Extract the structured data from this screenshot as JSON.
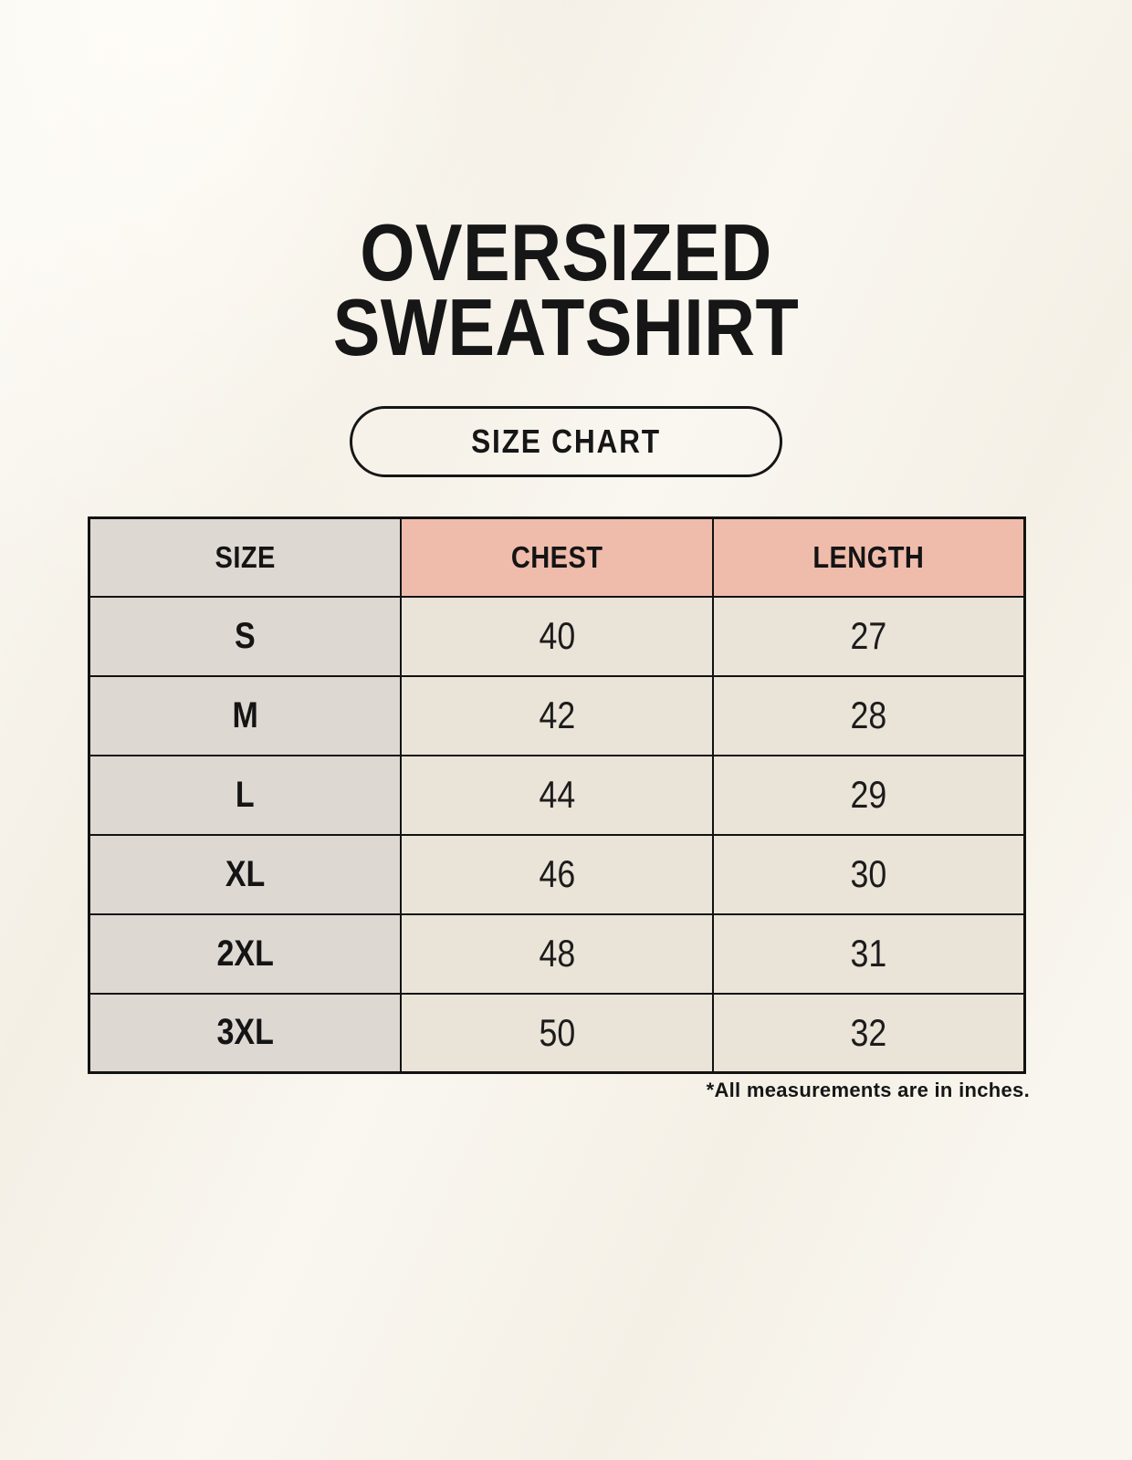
{
  "title": {
    "line1": "OVERSIZED",
    "line2": "SWEATSHIRT"
  },
  "badge": {
    "label": "SIZE CHART"
  },
  "table": {
    "headers": {
      "size": "SIZE",
      "chest": "CHEST",
      "length": "LENGTH"
    },
    "rows": [
      {
        "size": "S",
        "chest": "40",
        "length": "27"
      },
      {
        "size": "M",
        "chest": "42",
        "length": "28"
      },
      {
        "size": "L",
        "chest": "44",
        "length": "29"
      },
      {
        "size": "XL",
        "chest": "46",
        "length": "30"
      },
      {
        "size": "2XL",
        "chest": "48",
        "length": "31"
      },
      {
        "size": "3XL",
        "chest": "50",
        "length": "32"
      }
    ]
  },
  "footnote": "*All measurements are in inches.",
  "colors": {
    "background": "#f7f3ea",
    "header_accent": "#efbcab",
    "size_column": "#ded8d2",
    "cell_background": "#eae3d7",
    "border": "#121212",
    "text": "#1a1a1a"
  },
  "chart_data": {
    "type": "table",
    "title": "OVERSIZED SWEATSHIRT",
    "columns": [
      "SIZE",
      "CHEST",
      "LENGTH"
    ],
    "rows": [
      [
        "S",
        "40",
        "27"
      ],
      [
        "M",
        "42",
        "28"
      ],
      [
        "L",
        "44",
        "29"
      ],
      [
        "XL",
        "46",
        "30"
      ],
      [
        "2XL",
        "48",
        "31"
      ],
      [
        "3XL",
        "50",
        "32"
      ]
    ],
    "units": "inches"
  }
}
